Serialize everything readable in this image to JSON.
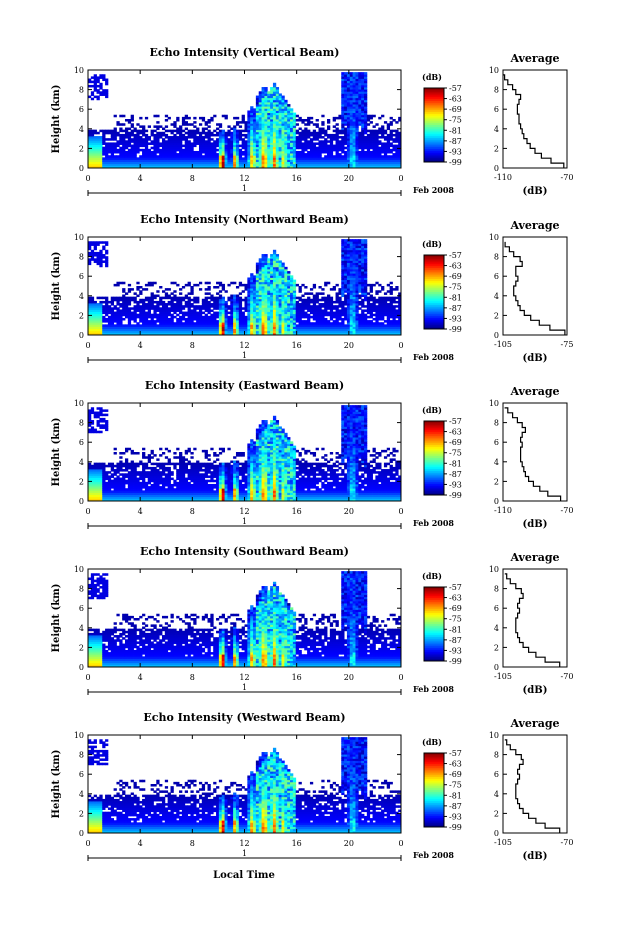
{
  "figure": {
    "xlabel": "Local Time",
    "ylabel": "Height (km)",
    "date_label": "Feb 2008",
    "day_label": "1",
    "colorbar_unit": "(dB)",
    "avg_title": "Average",
    "avg_xlabel": "(dB)"
  },
  "chart_data": [
    {
      "type": "heatmap",
      "title": "Echo Intensity (Vertical Beam)",
      "xlabel": "",
      "ylabel": "Height (km)",
      "x_ticks": [
        "0",
        "4",
        "8",
        "12",
        "16",
        "20",
        "0"
      ],
      "xlim": [
        0,
        24
      ],
      "y_ticks": [
        "0",
        "2",
        "4",
        "6",
        "8",
        "10"
      ],
      "ylim": [
        0,
        10
      ],
      "colorbar": {
        "label": "(dB)",
        "ticks": [
          "-57",
          "-63",
          "-69",
          "-75",
          "-81",
          "-87",
          "-93",
          "-99"
        ],
        "range": [
          -99,
          -57
        ]
      },
      "average_profile": {
        "title": "Average",
        "xlabel": "(dB)",
        "x_tick_labels": [
          "-110",
          "-70"
        ],
        "xlim": [
          -110,
          -70
        ],
        "height_km": [
          0,
          0.5,
          1,
          1.5,
          2,
          2.5,
          3,
          3.5,
          4,
          4.5,
          5,
          5.5,
          6,
          6.5,
          7,
          7.5,
          8,
          8.5,
          9,
          9.5
        ],
        "echo_db": [
          -72,
          -80,
          -86,
          -90,
          -93,
          -95,
          -97,
          -98,
          -99,
          -100,
          -100,
          -101,
          -101,
          -100,
          -99,
          -102,
          -104,
          -107,
          -109,
          -110
        ]
      }
    },
    {
      "type": "heatmap",
      "title": "Echo Intensity (Northward Beam)",
      "xlabel": "",
      "ylabel": "Height (km)",
      "x_ticks": [
        "0",
        "4",
        "8",
        "12",
        "16",
        "20",
        "0"
      ],
      "xlim": [
        0,
        24
      ],
      "y_ticks": [
        "0",
        "2",
        "4",
        "6",
        "8",
        "10"
      ],
      "ylim": [
        0,
        10
      ],
      "colorbar": {
        "label": "(dB)",
        "ticks": [
          "-57",
          "-63",
          "-69",
          "-75",
          "-81",
          "-87",
          "-93",
          "-99"
        ],
        "range": [
          -99,
          -57
        ]
      },
      "average_profile": {
        "title": "Average",
        "xlabel": "(dB)",
        "x_tick_labels": [
          "-105",
          "-75"
        ],
        "xlim": [
          -105,
          -75
        ],
        "height_km": [
          0,
          0.5,
          1,
          1.5,
          2,
          2.5,
          3,
          3.5,
          4,
          4.5,
          5,
          5.5,
          6,
          6.5,
          7,
          7.5,
          8,
          8.5,
          9,
          9.5
        ],
        "echo_db": [
          -76,
          -83,
          -88,
          -92,
          -95,
          -97,
          -98,
          -99,
          -100,
          -100,
          -99,
          -98,
          -99,
          -99,
          -96,
          -97,
          -100,
          -102,
          -104,
          -104
        ]
      }
    },
    {
      "type": "heatmap",
      "title": "Echo Intensity (Eastward Beam)",
      "xlabel": "",
      "ylabel": "Height (km)",
      "x_ticks": [
        "0",
        "4",
        "8",
        "12",
        "16",
        "20",
        "0"
      ],
      "xlim": [
        0,
        24
      ],
      "y_ticks": [
        "0",
        "2",
        "4",
        "6",
        "8",
        "10"
      ],
      "ylim": [
        0,
        10
      ],
      "colorbar": {
        "label": "(dB)",
        "ticks": [
          "-57",
          "-63",
          "-69",
          "-75",
          "-81",
          "-87",
          "-93",
          "-99"
        ],
        "range": [
          -99,
          -57
        ]
      },
      "average_profile": {
        "title": "Average",
        "xlabel": "(dB)",
        "x_tick_labels": [
          "-110",
          "-70"
        ],
        "xlim": [
          -110,
          -70
        ],
        "height_km": [
          0,
          0.5,
          1,
          1.5,
          2,
          2.5,
          3,
          3.5,
          4,
          4.5,
          5,
          5.5,
          6,
          6.5,
          7,
          7.5,
          8,
          8.5,
          9,
          9.5
        ],
        "echo_db": [
          -74,
          -82,
          -87,
          -91,
          -94,
          -96,
          -97,
          -98,
          -99,
          -99,
          -99,
          -98,
          -99,
          -98,
          -96,
          -98,
          -101,
          -104,
          -107,
          -109
        ]
      }
    },
    {
      "type": "heatmap",
      "title": "Echo Intensity (Southward Beam)",
      "xlabel": "",
      "ylabel": "Height (km)",
      "x_ticks": [
        "0",
        "4",
        "8",
        "12",
        "16",
        "20",
        "0"
      ],
      "xlim": [
        0,
        24
      ],
      "y_ticks": [
        "0",
        "2",
        "4",
        "6",
        "8",
        "10"
      ],
      "ylim": [
        0,
        10
      ],
      "colorbar": {
        "label": "(dB)",
        "ticks": [
          "-57",
          "-63",
          "-69",
          "-75",
          "-81",
          "-87",
          "-93",
          "-99"
        ],
        "range": [
          -99,
          -57
        ]
      },
      "average_profile": {
        "title": "Average",
        "xlabel": "(dB)",
        "x_tick_labels": [
          "-105",
          "-70"
        ],
        "xlim": [
          -105,
          -70
        ],
        "height_km": [
          0,
          0.5,
          1,
          1.5,
          2,
          2.5,
          3,
          3.5,
          4,
          4.5,
          5,
          5.5,
          6,
          6.5,
          7,
          7.5,
          8,
          8.5,
          9,
          9.5
        ],
        "echo_db": [
          -74,
          -82,
          -87,
          -91,
          -94,
          -96,
          -97,
          -98,
          -98,
          -98,
          -97,
          -96,
          -97,
          -96,
          -94,
          -95,
          -98,
          -101,
          -103,
          -104
        ]
      }
    },
    {
      "type": "heatmap",
      "title": "Echo Intensity (Westward Beam)",
      "xlabel": "Local Time",
      "ylabel": "Height (km)",
      "x_ticks": [
        "0",
        "4",
        "8",
        "12",
        "16",
        "20",
        "0"
      ],
      "xlim": [
        0,
        24
      ],
      "y_ticks": [
        "0",
        "2",
        "4",
        "6",
        "8",
        "10"
      ],
      "ylim": [
        0,
        10
      ],
      "colorbar": {
        "label": "(dB)",
        "ticks": [
          "-57",
          "-63",
          "-69",
          "-75",
          "-81",
          "-87",
          "-93",
          "-99"
        ],
        "range": [
          -99,
          -57
        ]
      },
      "average_profile": {
        "title": "Average",
        "xlabel": "(dB)",
        "x_tick_labels": [
          "-105",
          "-70"
        ],
        "xlim": [
          -105,
          -70
        ],
        "height_km": [
          0,
          0.5,
          1,
          1.5,
          2,
          2.5,
          3,
          3.5,
          4,
          4.5,
          5,
          5.5,
          6,
          6.5,
          7,
          7.5,
          8,
          8.5,
          9,
          9.5
        ],
        "echo_db": [
          -74,
          -82,
          -87,
          -91,
          -94,
          -96,
          -97,
          -98,
          -98,
          -98,
          -97,
          -96,
          -97,
          -96,
          -94,
          -95,
          -98,
          -101,
          -103,
          -104
        ]
      }
    }
  ]
}
